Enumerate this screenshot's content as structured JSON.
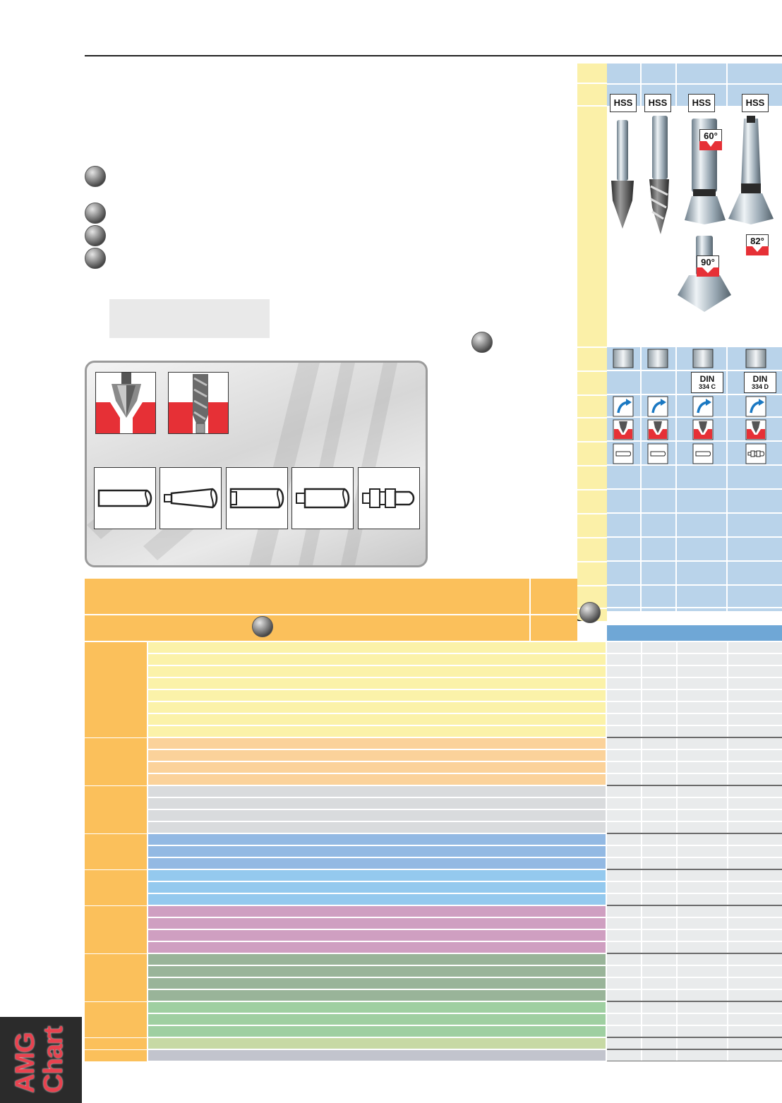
{
  "spec_columns": [
    {
      "material": "HSS",
      "x": 0
    },
    {
      "material": "HSS",
      "x": 1
    },
    {
      "material": "HSS",
      "x": 2,
      "angle": "60°",
      "angle2": "90°",
      "din": {
        "line1": "DIN",
        "line2": "334 C"
      }
    },
    {
      "material": "HSS",
      "x": 3,
      "angle": "82°",
      "din": {
        "line1": "DIN",
        "line2": "334 D"
      }
    }
  ],
  "angles": {
    "a60": "60°",
    "a90": "90°",
    "a82": "82°"
  },
  "side_tab": {
    "line1": "AMG",
    "line2": "Chart"
  },
  "colors": {
    "header_blue": "#b9d3ea",
    "light_yellow": "#fbf1a2",
    "yellow_col": "#fbf0a8",
    "orange": "#fbc05b",
    "accent_red": "#e63036"
  },
  "material_groups": [
    {
      "rows": 8,
      "color": "#fbf2a9"
    },
    {
      "rows": 4,
      "color": "#fbd29a"
    },
    {
      "rows": 4,
      "color": "#d9dbdd"
    },
    {
      "rows": 3,
      "color": "#93b9e3"
    },
    {
      "rows": 3,
      "color": "#94c9ee"
    },
    {
      "rows": 4,
      "color": "#cf9fc1"
    },
    {
      "rows": 4,
      "color": "#99b499"
    },
    {
      "rows": 3,
      "color": "#9fcfa1"
    },
    {
      "rows": 1,
      "color": "#c7d9a4"
    },
    {
      "rows": 1,
      "color": "#c2c4cd"
    }
  ]
}
